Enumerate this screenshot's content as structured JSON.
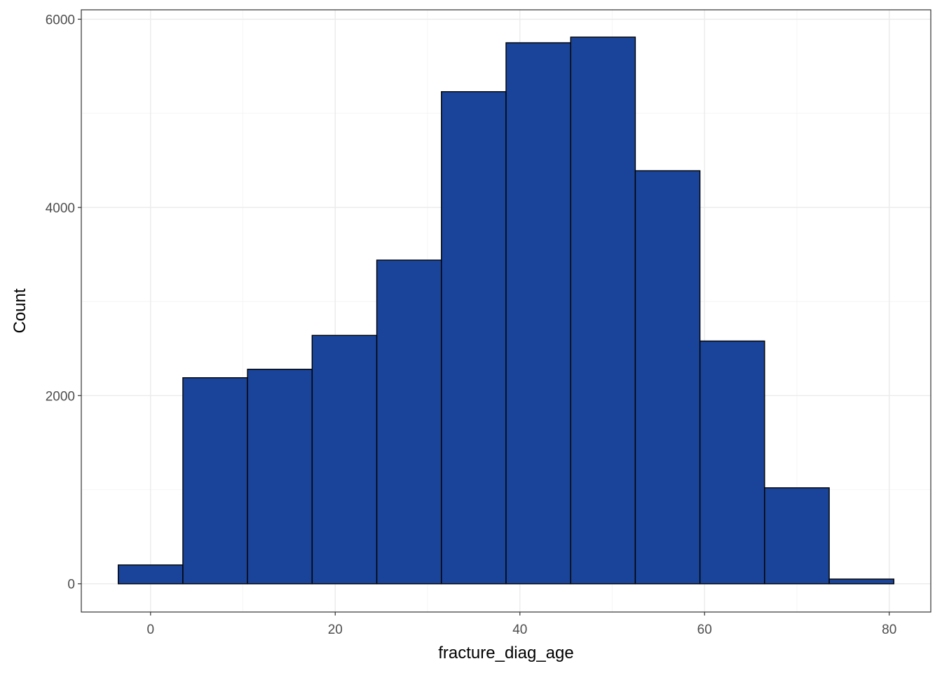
{
  "chart_data": {
    "type": "bar",
    "subtype": "histogram",
    "title": "",
    "xlabel": "fracture_diag_age",
    "ylabel": "Count",
    "xlim": [
      -7.5,
      84.5
    ],
    "ylim": [
      -300,
      6100
    ],
    "x_ticks": [
      0,
      20,
      40,
      60,
      80
    ],
    "y_ticks": [
      0,
      2000,
      4000,
      6000
    ],
    "x_minor_ticks": [
      10,
      30,
      50,
      70
    ],
    "y_minor_ticks": [
      1000,
      3000,
      5000
    ],
    "grid": true,
    "bar_fill": "#1a4499",
    "bar_outline": "#000000",
    "bins": [
      {
        "x0": -3.5,
        "x1": 3.5,
        "count": 200
      },
      {
        "x0": 3.5,
        "x1": 10.5,
        "count": 2190
      },
      {
        "x0": 10.5,
        "x1": 17.5,
        "count": 2280
      },
      {
        "x0": 17.5,
        "x1": 24.5,
        "count": 2640
      },
      {
        "x0": 24.5,
        "x1": 31.5,
        "count": 3440
      },
      {
        "x0": 31.5,
        "x1": 38.5,
        "count": 5230
      },
      {
        "x0": 38.5,
        "x1": 45.5,
        "count": 5750
      },
      {
        "x0": 45.5,
        "x1": 52.5,
        "count": 5810
      },
      {
        "x0": 52.5,
        "x1": 59.5,
        "count": 4390
      },
      {
        "x0": 59.5,
        "x1": 66.5,
        "count": 2580
      },
      {
        "x0": 66.5,
        "x1": 73.5,
        "count": 1020
      },
      {
        "x0": 73.5,
        "x1": 80.5,
        "count": 50
      }
    ]
  }
}
